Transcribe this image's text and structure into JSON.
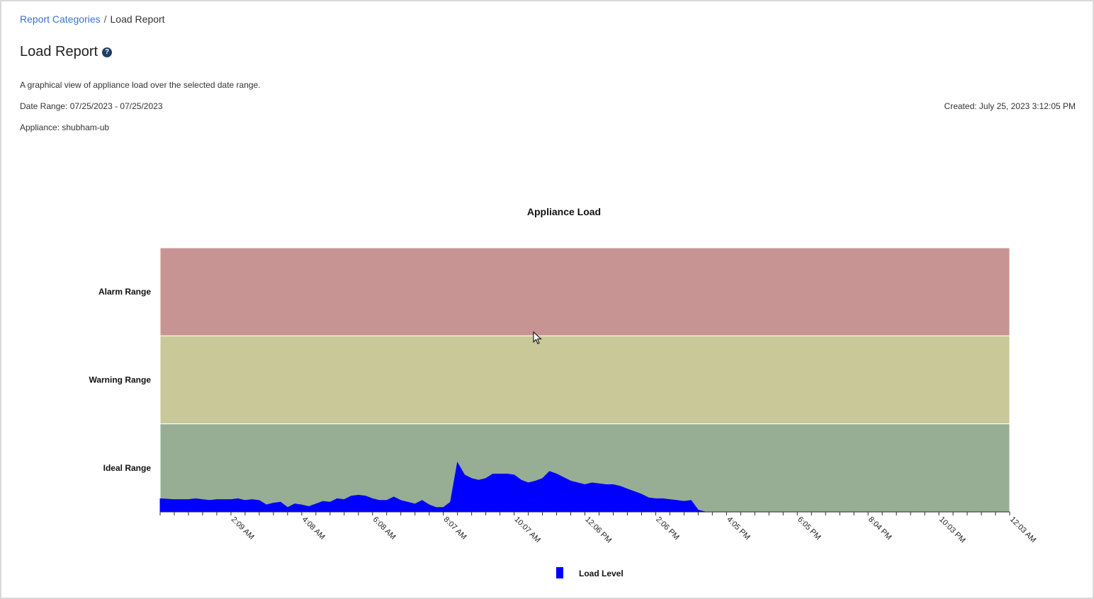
{
  "breadcrumb": {
    "parent": "Report Categories",
    "separator": "/",
    "current": "Load Report"
  },
  "page": {
    "title": "Load Report",
    "help_glyph": "?",
    "description": "A graphical view of appliance load over the selected date range.",
    "date_range": "Date Range: 07/25/2023 - 07/25/2023",
    "appliance": "Appliance: shubham-ub",
    "created": "Created: July 25, 2023 3:12:05 PM"
  },
  "colors": {
    "alarm": "#c79493",
    "warning": "#c9c898",
    "ideal": "#97ae94",
    "load": "#0000ff",
    "link": "#3b73c9"
  },
  "chart_data": {
    "type": "area",
    "title": "Appliance Load",
    "bands": [
      {
        "label": "Alarm Range",
        "from": 2,
        "to": 3
      },
      {
        "label": "Warning Range",
        "from": 1,
        "to": 2
      },
      {
        "label": "Ideal Range",
        "from": 0,
        "to": 1
      }
    ],
    "ylim": [
      0,
      3
    ],
    "xlim": [
      0,
      120
    ],
    "x_tick_count": 61,
    "x_tick_labels": [
      {
        "x": 10,
        "label": "2:09 AM"
      },
      {
        "x": 20,
        "label": "4:08 AM"
      },
      {
        "x": 30,
        "label": "6:08 AM"
      },
      {
        "x": 40,
        "label": "8:07 AM"
      },
      {
        "x": 50,
        "label": "10:07 AM"
      },
      {
        "x": 60,
        "label": "12:06 PM"
      },
      {
        "x": 70,
        "label": "2:06 PM"
      },
      {
        "x": 80,
        "label": "4:05 PM"
      },
      {
        "x": 90,
        "label": "6:05 PM"
      },
      {
        "x": 100,
        "label": "8:04 PM"
      },
      {
        "x": 110,
        "label": "10:03 PM"
      },
      {
        "x": 120,
        "label": "12:03 AM"
      }
    ],
    "series": [
      {
        "name": "Load Level",
        "x": [
          0,
          2,
          4,
          5,
          6,
          7,
          8,
          9,
          10,
          11,
          12,
          13,
          14,
          15,
          16,
          17,
          18,
          19,
          20,
          21,
          22,
          23,
          24,
          25,
          26,
          27,
          28,
          29,
          30,
          31,
          32,
          33,
          34,
          35,
          36,
          37,
          38,
          39,
          40,
          41,
          42,
          43,
          44,
          45,
          46,
          47,
          48,
          49,
          50,
          51,
          52,
          53,
          54,
          55,
          56,
          57,
          58,
          59,
          60,
          61,
          62,
          63,
          64,
          65,
          66,
          67,
          68,
          69,
          70,
          71,
          72,
          73,
          74,
          75,
          76,
          77,
          78,
          79,
          80,
          81,
          82,
          83,
          84,
          85,
          86,
          87,
          88,
          89,
          90,
          91,
          120
        ],
        "y": [
          0.15,
          0.14,
          0.14,
          0.15,
          0.14,
          0.13,
          0.14,
          0.14,
          0.14,
          0.15,
          0.13,
          0.14,
          0.13,
          0.08,
          0.1,
          0.11,
          0.05,
          0.09,
          0.08,
          0.06,
          0.09,
          0.12,
          0.11,
          0.15,
          0.14,
          0.18,
          0.19,
          0.18,
          0.15,
          0.13,
          0.13,
          0.17,
          0.13,
          0.11,
          0.09,
          0.13,
          0.08,
          0.05,
          0.05,
          0.11,
          0.56,
          0.42,
          0.38,
          0.36,
          0.38,
          0.43,
          0.43,
          0.43,
          0.42,
          0.36,
          0.33,
          0.35,
          0.38,
          0.46,
          0.43,
          0.39,
          0.35,
          0.33,
          0.31,
          0.33,
          0.32,
          0.31,
          0.31,
          0.29,
          0.26,
          0.23,
          0.2,
          0.16,
          0.15,
          0.15,
          0.14,
          0.13,
          0.12,
          0.13,
          0.02,
          0.0,
          0.0,
          0.0,
          0.0,
          0.0,
          0.0,
          0.0,
          0.0,
          0.0,
          0.0,
          0.0,
          0.0,
          0.0,
          0.0,
          0.0,
          0.0
        ]
      }
    ],
    "legend": {
      "label": "Load Level",
      "position": "bottom"
    }
  }
}
